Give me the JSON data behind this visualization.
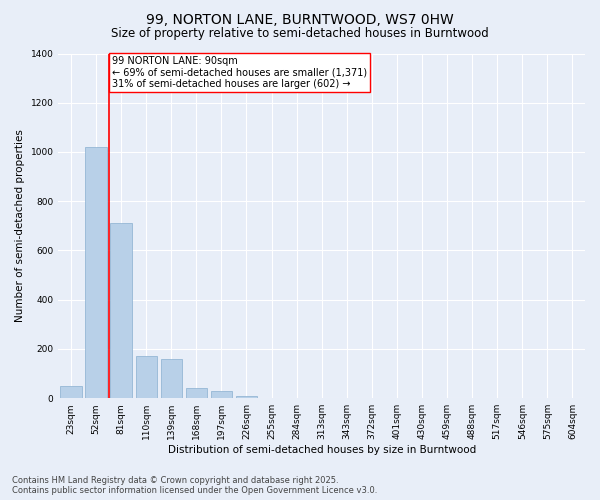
{
  "title": "99, NORTON LANE, BURNTWOOD, WS7 0HW",
  "subtitle": "Size of property relative to semi-detached houses in Burntwood",
  "xlabel": "Distribution of semi-detached houses by size in Burntwood",
  "ylabel": "Number of semi-detached properties",
  "categories": [
    "23sqm",
    "52sqm",
    "81sqm",
    "110sqm",
    "139sqm",
    "168sqm",
    "197sqm",
    "226sqm",
    "255sqm",
    "284sqm",
    "313sqm",
    "343sqm",
    "372sqm",
    "401sqm",
    "430sqm",
    "459sqm",
    "488sqm",
    "517sqm",
    "546sqm",
    "575sqm",
    "604sqm"
  ],
  "values": [
    50,
    1020,
    710,
    170,
    160,
    40,
    30,
    10,
    0,
    0,
    0,
    0,
    0,
    0,
    0,
    0,
    0,
    0,
    0,
    0,
    0
  ],
  "bar_color": "#b8d0e8",
  "bar_edge_color": "#8ab0d0",
  "vline_color": "red",
  "vline_pos": 1.5,
  "annotation_title": "99 NORTON LANE: 90sqm",
  "annotation_line1": "← 69% of semi-detached houses are smaller (1,371)",
  "annotation_line2": "31% of semi-detached houses are larger (602) →",
  "annotation_box_facecolor": "white",
  "annotation_box_edgecolor": "red",
  "ylim": [
    0,
    1400
  ],
  "yticks": [
    0,
    200,
    400,
    600,
    800,
    1000,
    1200,
    1400
  ],
  "bg_color": "#e8eef8",
  "plot_bg_color": "#e8eef8",
  "footer1": "Contains HM Land Registry data © Crown copyright and database right 2025.",
  "footer2": "Contains public sector information licensed under the Open Government Licence v3.0.",
  "title_fontsize": 10,
  "subtitle_fontsize": 8.5,
  "axis_label_fontsize": 7.5,
  "tick_fontsize": 6.5,
  "annotation_fontsize": 7,
  "footer_fontsize": 6
}
